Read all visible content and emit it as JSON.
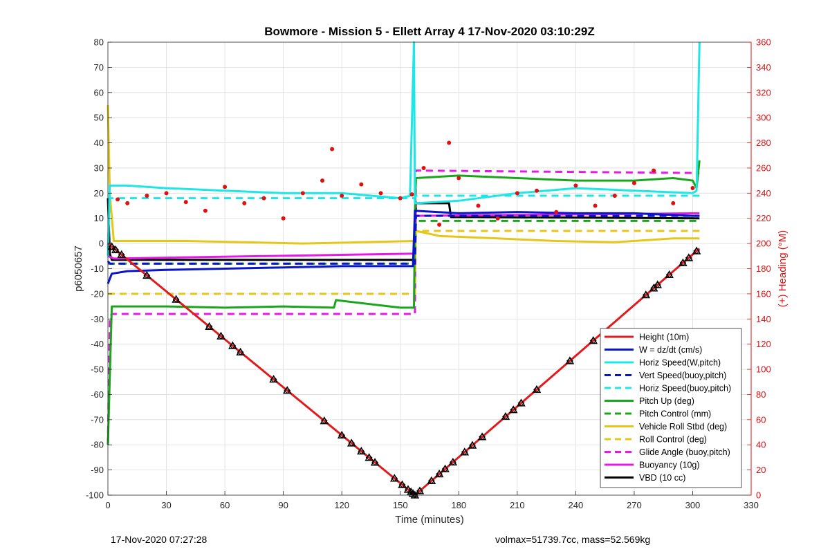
{
  "figure": {
    "footer_left": "17-Nov-2020 07:27:28",
    "footer_right": "volmax=51739.7cc, mass=52.569kg"
  },
  "chart_data": {
    "type": "line",
    "title": "Bowmore - Mission 5 - Ellett Array 4 17-Nov-2020 03:10:29Z",
    "xlabel": "Time (minutes)",
    "ylabel": "p6050657",
    "y2label": "(+) Heading (°M)",
    "xlim": [
      0,
      330
    ],
    "ylim": [
      -100,
      80
    ],
    "y2lim": [
      0,
      360
    ],
    "xticks": [
      0,
      30,
      60,
      90,
      120,
      150,
      180,
      210,
      240,
      270,
      300,
      330
    ],
    "yticks": [
      -100,
      -90,
      -80,
      -70,
      -60,
      -50,
      -40,
      -30,
      -20,
      -10,
      0,
      10,
      20,
      30,
      40,
      50,
      60,
      70,
      80
    ],
    "y2ticks": [
      0,
      20,
      40,
      60,
      80,
      100,
      120,
      140,
      160,
      180,
      200,
      220,
      240,
      260,
      280,
      300,
      320,
      340,
      360
    ],
    "grid": true,
    "legend_position": "bottom-right",
    "colors": {
      "red": "#e31a1c",
      "blue": "#0a14c8",
      "cyan": "#1de6e6",
      "green": "#1aa61a",
      "yellow": "#e6c619",
      "magenta": "#e619e6",
      "black": "#000000",
      "heading": "#e01010"
    },
    "series": [
      {
        "name": "Height (10m)",
        "color": "red",
        "style": "solid",
        "x": [
          0,
          157.5,
          303.5
        ],
        "y": [
          0,
          -100,
          -2
        ]
      },
      {
        "name": "W = dz/dt (cm/s)",
        "color": "blue",
        "style": "solid",
        "x": [
          0,
          2,
          10,
          30,
          60,
          90,
          120,
          150,
          156.5,
          157.5,
          180,
          210,
          240,
          270,
          300,
          303.5
        ],
        "y": [
          -16,
          -12,
          -11,
          -10.5,
          -10,
          -9.5,
          -9,
          -9,
          -9,
          13,
          12,
          12.5,
          12,
          12,
          11,
          11
        ]
      },
      {
        "name": "Horiz Speed(W,pitch)",
        "color": "cyan",
        "style": "solid",
        "x": [
          0,
          1,
          10,
          30,
          60,
          90,
          120,
          150,
          155,
          157,
          157.5,
          158,
          180,
          210,
          240,
          270,
          300,
          302,
          303.5
        ],
        "y": [
          -5,
          23,
          23,
          22,
          21,
          20,
          20,
          18,
          19,
          80,
          16,
          16,
          17,
          20,
          22,
          21,
          20,
          21,
          80
        ]
      },
      {
        "name": "Vert Speed(buoy,pitch)",
        "color": "blue",
        "style": "dashed",
        "x": [
          0,
          1,
          157.5,
          158,
          303.5
        ],
        "y": [
          -7,
          -8,
          -8,
          11,
          11
        ]
      },
      {
        "name": "Horiz Speed(buoy,pitch)",
        "color": "cyan",
        "style": "dashed",
        "x": [
          0,
          1,
          157.5,
          158,
          303.5
        ],
        "y": [
          -2,
          18,
          18,
          19,
          19
        ]
      },
      {
        "name": "Pitch Up (deg)",
        "color": "green",
        "style": "solid",
        "x": [
          0,
          2,
          30,
          60,
          90,
          116,
          117,
          150,
          157,
          157.5,
          158,
          180,
          210,
          240,
          270,
          290,
          300,
          302,
          303.5
        ],
        "y": [
          -80,
          -25,
          -25,
          -25.5,
          -25,
          -25.5,
          -22.5,
          -25.5,
          -25.5,
          12,
          26,
          27,
          26,
          25,
          25,
          26,
          25,
          22,
          33
        ]
      },
      {
        "name": "Pitch Control (mm)",
        "color": "green",
        "style": "dashed",
        "x": [
          0,
          2,
          157.5,
          158,
          303.5
        ],
        "y": [
          -8,
          -8,
          -8,
          9,
          9
        ]
      },
      {
        "name": "Vehicle Roll Stbd (deg)",
        "color": "yellow",
        "style": "solid",
        "x": [
          0,
          1,
          3,
          10,
          40,
          70,
          100,
          130,
          157.5,
          158,
          170,
          200,
          230,
          260,
          290,
          303.5
        ],
        "y": [
          55,
          20,
          1,
          1,
          1,
          0.5,
          0,
          0.5,
          1,
          5,
          3,
          2,
          1,
          0.5,
          2,
          2
        ]
      },
      {
        "name": "Roll Control (deg)",
        "color": "yellow",
        "style": "dashed",
        "x": [
          0,
          157.5,
          158,
          303.5
        ],
        "y": [
          -20,
          -20,
          5,
          5
        ]
      },
      {
        "name": "Glide Angle (buoy,pitch)",
        "color": "magenta",
        "style": "dashed",
        "x": [
          0,
          1,
          2,
          157.5,
          158,
          303.5
        ],
        "y": [
          -80,
          -30,
          -28,
          -28,
          29,
          28
        ]
      },
      {
        "name": "Buoyancy (10g)",
        "color": "magenta",
        "style": "solid",
        "x": [
          0,
          3,
          157.5,
          158,
          303.5
        ],
        "y": [
          -5,
          -6,
          -4,
          11,
          12
        ]
      },
      {
        "name": "VBD (10 cc)",
        "color": "black",
        "style": "solid",
        "x": [
          0,
          1,
          2,
          157.5,
          158,
          175,
          176,
          188,
          189,
          303.5
        ],
        "y": [
          18,
          -4,
          -6.5,
          -6.5,
          16,
          16,
          10.5,
          10.5,
          10.5,
          10
        ]
      }
    ],
    "heading": {
      "name": "Heading (°M)",
      "axis": "right",
      "style": "dots",
      "color": "heading",
      "x": [
        5,
        10,
        20,
        30,
        40,
        50,
        60,
        70,
        80,
        90,
        100,
        110,
        115,
        120,
        130,
        140,
        150,
        156,
        162,
        170,
        175,
        180,
        190,
        200,
        210,
        220,
        230,
        240,
        250,
        260,
        270,
        280,
        290,
        300
      ],
      "y": [
        235,
        232,
        238,
        240,
        233,
        226,
        245,
        232,
        236,
        220,
        240,
        250,
        275,
        238,
        247,
        240,
        236,
        239,
        260,
        215,
        280,
        252,
        230,
        220,
        240,
        242,
        225,
        246,
        230,
        238,
        248,
        258,
        232,
        244
      ]
    },
    "markers": {
      "name": "Height markers",
      "symbol": "triangle",
      "x": [
        2,
        4,
        7,
        20,
        35,
        52,
        58,
        64,
        68,
        85,
        92,
        111,
        120,
        125,
        130,
        134,
        137,
        147,
        151,
        154,
        155.5,
        156.5,
        157.5,
        160,
        166,
        170,
        173,
        177,
        183,
        187,
        192,
        204,
        208,
        212,
        220,
        237,
        249,
        276,
        280,
        282,
        288,
        295,
        298,
        302
      ]
    }
  }
}
